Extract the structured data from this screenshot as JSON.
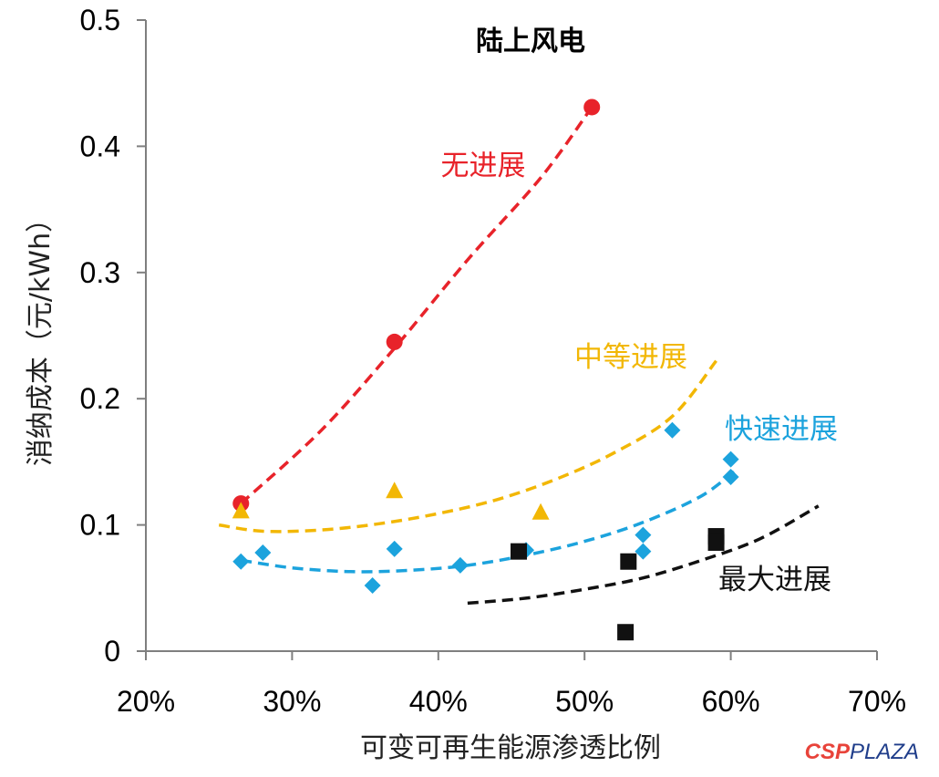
{
  "chart_data": {
    "type": "scatter",
    "title": "陆上风电",
    "xlabel": "可变可再生能源渗透比例",
    "ylabel": "消纳成本（元/kWh）",
    "xlim": [
      20,
      70
    ],
    "ylim": [
      0,
      0.5
    ],
    "x_ticks": [
      "20%",
      "30%",
      "40%",
      "50%",
      "60%",
      "70%"
    ],
    "y_ticks": [
      "0",
      "0.1",
      "0.2",
      "0.3",
      "0.4",
      "0.5"
    ],
    "series": [
      {
        "name": "无进展",
        "color": "#e8232a",
        "marker": "circle",
        "points": [
          [
            26.5,
            0.117
          ],
          [
            37,
            0.245
          ],
          [
            50.5,
            0.431
          ]
        ],
        "trend": [
          [
            26.5,
            0.117
          ],
          [
            32,
            0.175
          ],
          [
            37,
            0.24
          ],
          [
            42,
            0.31
          ],
          [
            47,
            0.375
          ],
          [
            50.5,
            0.431
          ]
        ]
      },
      {
        "name": "中等进展",
        "color": "#f2b705",
        "marker": "triangle",
        "points": [
          [
            26.5,
            0.111
          ],
          [
            37,
            0.127
          ],
          [
            47,
            0.11
          ]
        ],
        "trend": [
          [
            25,
            0.1
          ],
          [
            28,
            0.095
          ],
          [
            32,
            0.096
          ],
          [
            36,
            0.101
          ],
          [
            40,
            0.109
          ],
          [
            44,
            0.12
          ],
          [
            48,
            0.136
          ],
          [
            52,
            0.157
          ],
          [
            56,
            0.186
          ],
          [
            59,
            0.23
          ]
        ]
      },
      {
        "name": "快速进展",
        "color": "#1ca3dd",
        "marker": "diamond",
        "points": [
          [
            26.5,
            0.071
          ],
          [
            28,
            0.078
          ],
          [
            35.5,
            0.052
          ],
          [
            37,
            0.081
          ],
          [
            41.5,
            0.068
          ],
          [
            46,
            0.08
          ],
          [
            54,
            0.092
          ],
          [
            54,
            0.079
          ],
          [
            56,
            0.175
          ],
          [
            60,
            0.152
          ],
          [
            60,
            0.138
          ]
        ],
        "trend": [
          [
            26.5,
            0.072
          ],
          [
            30,
            0.066
          ],
          [
            34,
            0.063
          ],
          [
            38,
            0.064
          ],
          [
            42,
            0.068
          ],
          [
            46,
            0.076
          ],
          [
            50,
            0.087
          ],
          [
            54,
            0.102
          ],
          [
            58,
            0.123
          ],
          [
            60.5,
            0.145
          ]
        ]
      },
      {
        "name": "最大进展",
        "color": "#111111",
        "marker": "square",
        "points": [
          [
            45.5,
            0.079
          ],
          [
            53,
            0.071
          ],
          [
            52.8,
            0.015
          ],
          [
            59,
            0.091
          ],
          [
            59,
            0.086
          ]
        ],
        "trend": [
          [
            42,
            0.038
          ],
          [
            46,
            0.042
          ],
          [
            50,
            0.049
          ],
          [
            54,
            0.058
          ],
          [
            58,
            0.072
          ],
          [
            62,
            0.089
          ],
          [
            66,
            0.115
          ]
        ]
      }
    ]
  },
  "watermark": {
    "part1": "CSP",
    "part2": "PLAZA"
  }
}
